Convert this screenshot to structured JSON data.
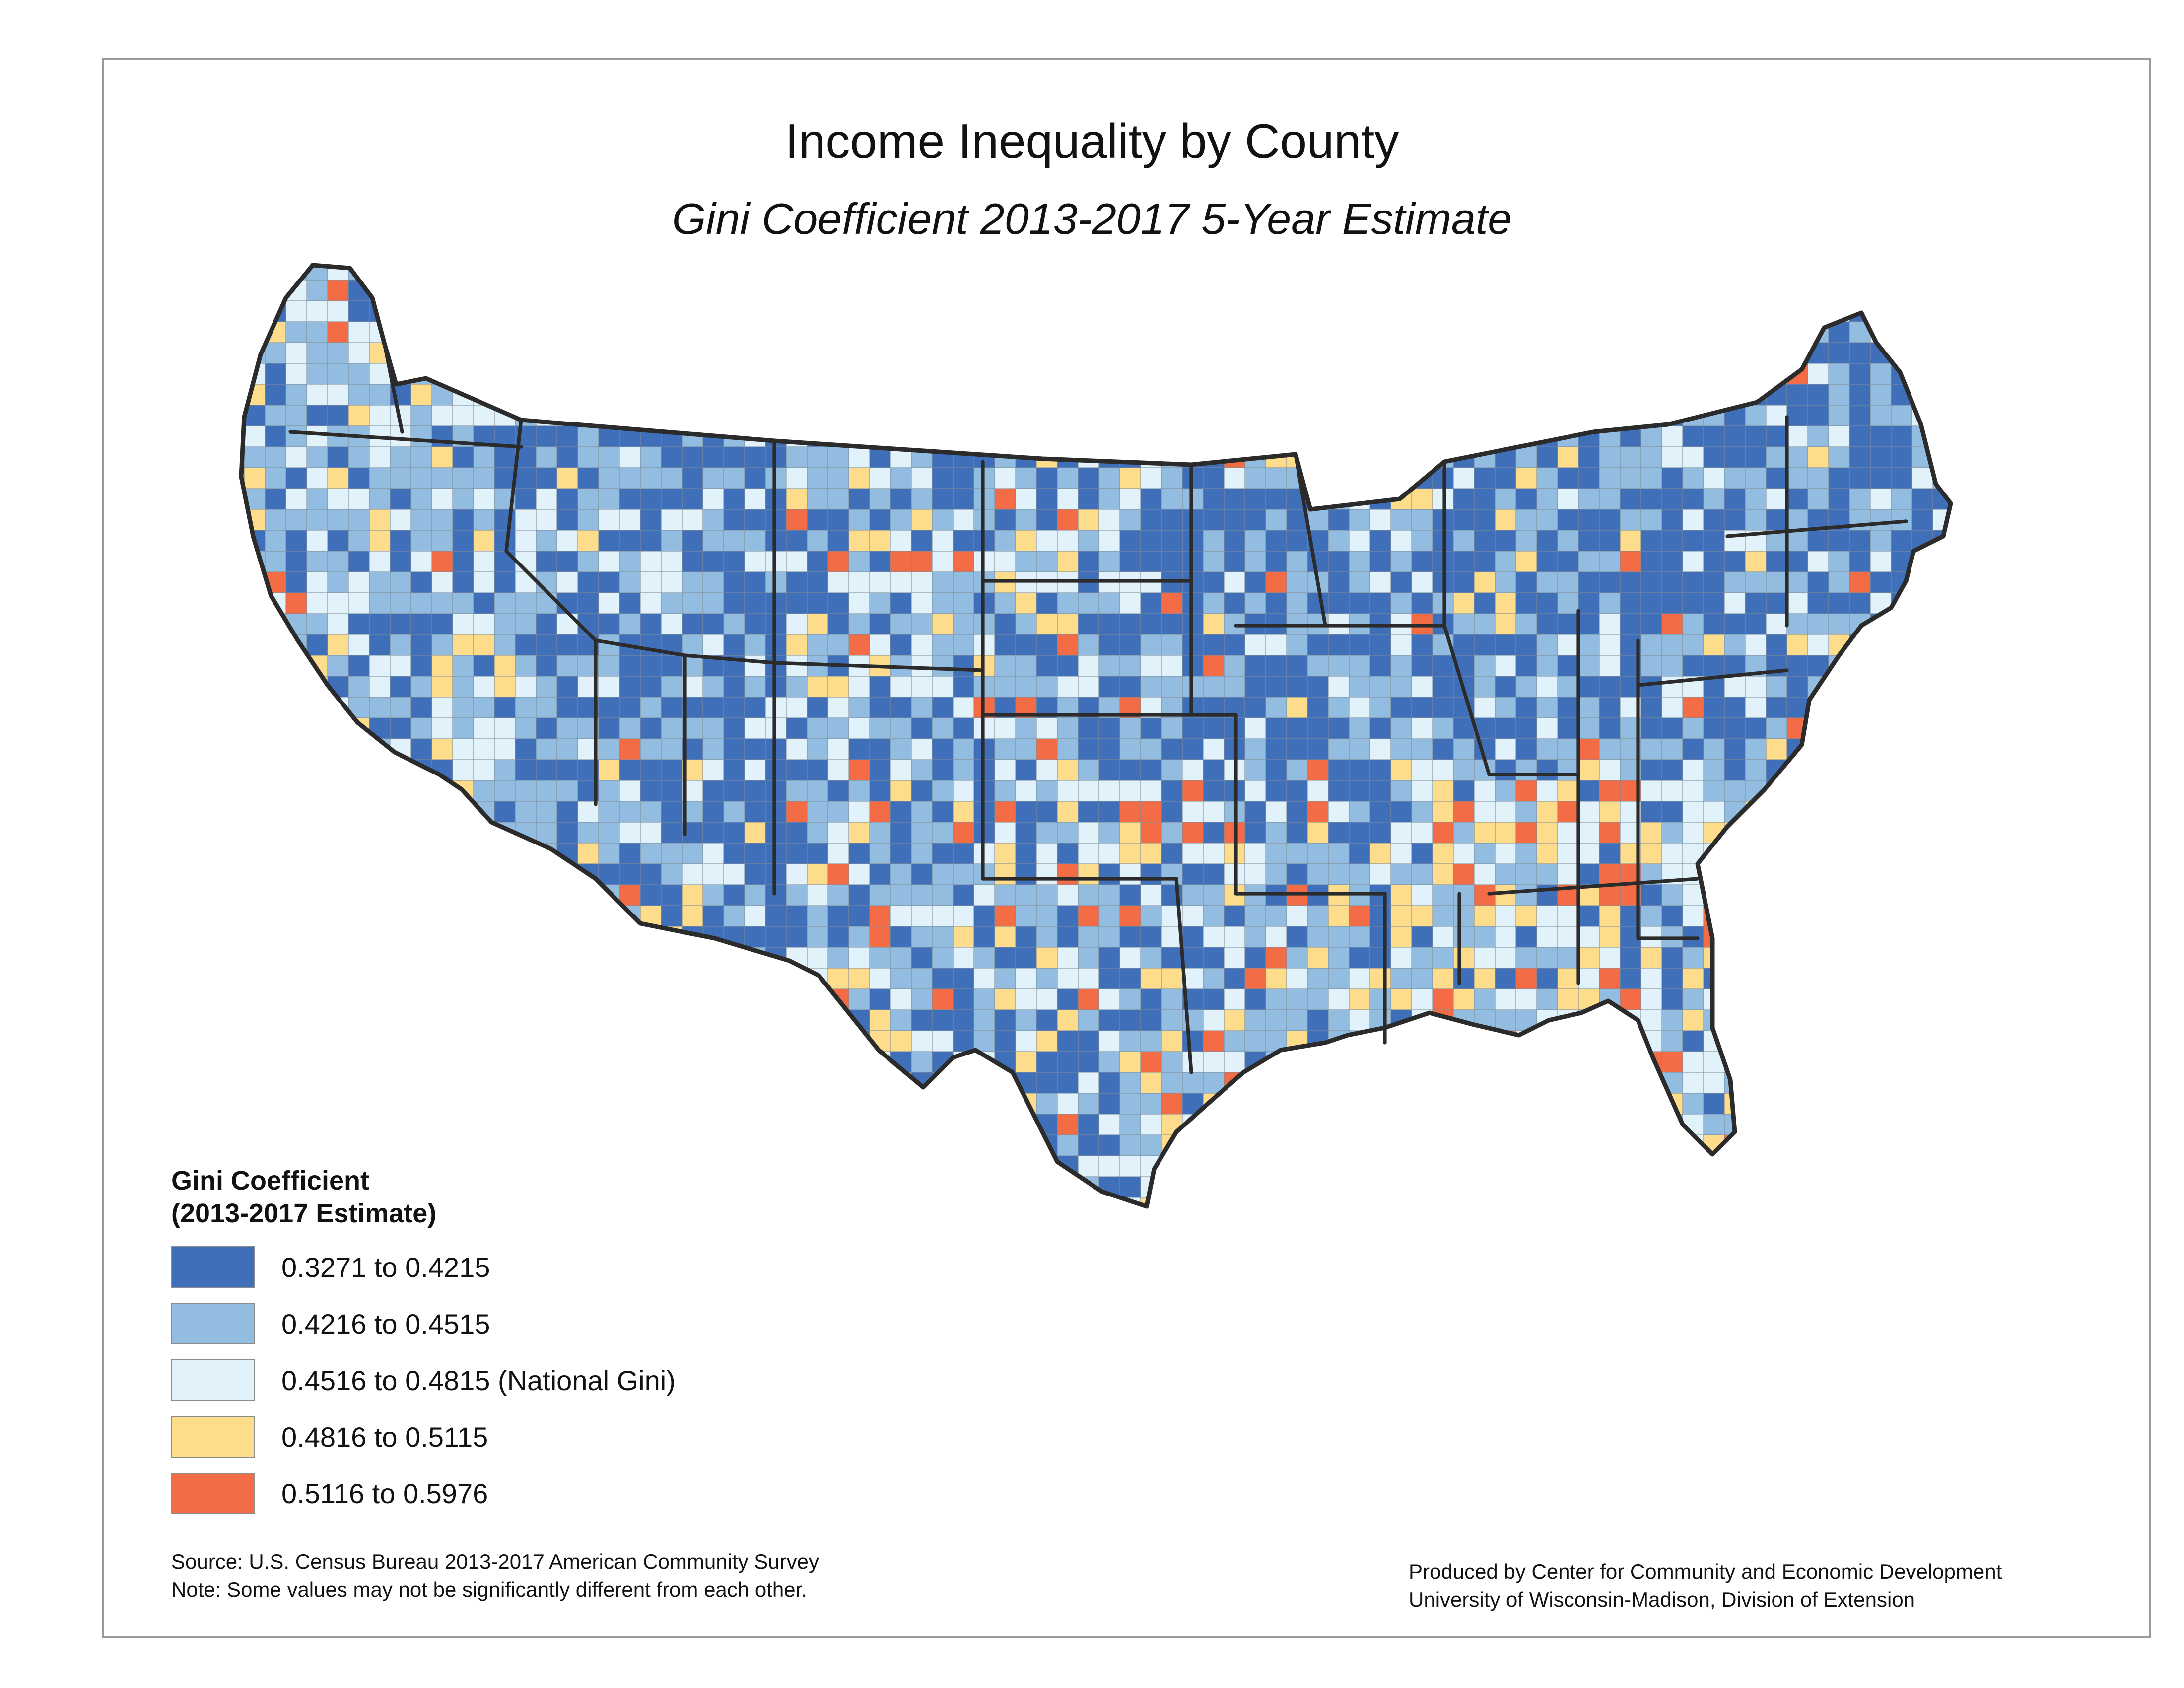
{
  "title": "Income Inequality by County",
  "subtitle": "Gini Coefficient 2013-2017 5-Year Estimate",
  "legend": {
    "title_line1": "Gini Coefficient",
    "title_line2": "(2013-2017 Estimate)",
    "classes": [
      {
        "label": "0.3271 to 0.4215",
        "color": "#3f6fb8"
      },
      {
        "label": "0.4216 to 0.4515",
        "color": "#93bde0"
      },
      {
        "label": "0.4516 to 0.4815 (National Gini)",
        "color": "#e2f2fa"
      },
      {
        "label": "0.4816 to 0.5115",
        "color": "#fddd8c"
      },
      {
        "label": "0.5116  to 0.5976",
        "color": "#f36c45"
      }
    ]
  },
  "source_line1": "Source: U.S. Census Bureau 2013-2017 American Community Survey",
  "source_line2": "Note: Some values may not be significantly different from each other.",
  "credit_line1": "Produced by Center for Community and Economic Development",
  "credit_line2": "University of Wisconsin-Madison, Division of Extension"
}
